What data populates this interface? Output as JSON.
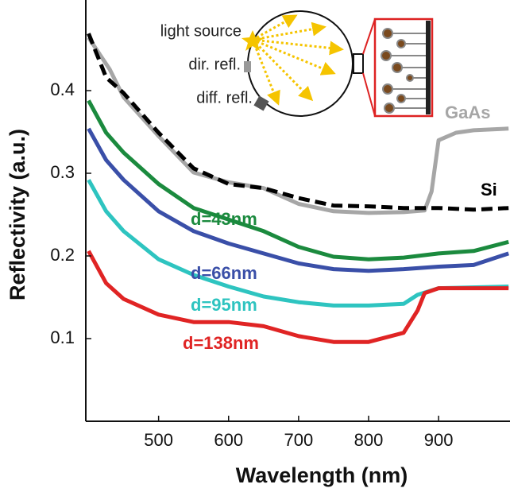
{
  "chart_data": {
    "type": "line",
    "xlabel": "Wavelength (nm)",
    "ylabel": "Reflectivity (a.u.)",
    "xlim": [
      396,
      1002
    ],
    "ylim": [
      0,
      0.5
    ],
    "xticks": [
      500,
      600,
      700,
      800,
      900
    ],
    "yticks": [
      0.1,
      0.2,
      0.3,
      0.4
    ],
    "inset_labels": [
      "light source",
      "dir. refl.",
      "diff. refl."
    ],
    "series": [
      {
        "name": "GaAs",
        "color": "#a6a6a6",
        "dashed": false,
        "x": [
          400,
          430,
          450,
          500,
          550,
          600,
          650,
          700,
          750,
          800,
          850,
          880,
          890,
          900,
          925,
          950,
          1000
        ],
        "values": [
          0.464,
          0.426,
          0.392,
          0.345,
          0.301,
          0.289,
          0.282,
          0.263,
          0.254,
          0.252,
          0.253,
          0.255,
          0.278,
          0.34,
          0.349,
          0.352,
          0.354
        ]
      },
      {
        "name": "Si",
        "color": "#000000",
        "dashed": true,
        "x": [
          400,
          425,
          450,
          500,
          550,
          600,
          650,
          700,
          750,
          800,
          850,
          900,
          950,
          1000
        ],
        "values": [
          0.469,
          0.416,
          0.397,
          0.349,
          0.306,
          0.287,
          0.282,
          0.27,
          0.261,
          0.26,
          0.258,
          0.258,
          0.256,
          0.258
        ]
      },
      {
        "name": "d=43nm",
        "color": "#1b8a3e",
        "dashed": false,
        "x": [
          400,
          425,
          450,
          500,
          550,
          600,
          650,
          700,
          750,
          800,
          850,
          900,
          950,
          1000
        ],
        "values": [
          0.388,
          0.349,
          0.325,
          0.287,
          0.258,
          0.244,
          0.23,
          0.211,
          0.199,
          0.196,
          0.198,
          0.203,
          0.206,
          0.217
        ]
      },
      {
        "name": "d=66nm",
        "color": "#3a4fa8",
        "dashed": false,
        "x": [
          400,
          425,
          450,
          500,
          550,
          600,
          650,
          700,
          750,
          800,
          850,
          900,
          950,
          1000
        ],
        "values": [
          0.354,
          0.316,
          0.292,
          0.254,
          0.23,
          0.215,
          0.203,
          0.191,
          0.184,
          0.182,
          0.184,
          0.187,
          0.189,
          0.203
        ]
      },
      {
        "name": "d=95nm",
        "color": "#2ec4c0",
        "dashed": false,
        "x": [
          400,
          425,
          450,
          500,
          550,
          600,
          650,
          700,
          750,
          800,
          850,
          870,
          900,
          1000
        ],
        "values": [
          0.292,
          0.254,
          0.23,
          0.196,
          0.177,
          0.163,
          0.151,
          0.144,
          0.14,
          0.14,
          0.142,
          0.153,
          0.161,
          0.163
        ]
      },
      {
        "name": "d=138nm",
        "color": "#e02424",
        "dashed": false,
        "x": [
          400,
          425,
          450,
          500,
          550,
          600,
          650,
          700,
          750,
          800,
          850,
          870,
          880,
          900,
          1000
        ],
        "values": [
          0.206,
          0.167,
          0.148,
          0.129,
          0.12,
          0.12,
          0.115,
          0.103,
          0.096,
          0.096,
          0.107,
          0.134,
          0.155,
          0.161,
          0.161
        ]
      }
    ]
  }
}
